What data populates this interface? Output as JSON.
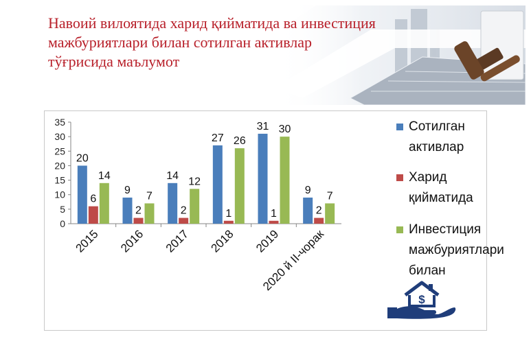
{
  "title": {
    "line1": "Навоий вилоятида харид қийматида ва инвестиция",
    "line2": "мажбуриятлари билан сотилган активлар",
    "line3": "тўғрисида маълумот"
  },
  "chart_data": {
    "type": "bar",
    "categories": [
      "2015",
      "2016",
      "2017",
      "2018",
      "2019",
      "2020 й II-чорак"
    ],
    "series": [
      {
        "name": "Сотилган активлар",
        "color": "#4a7ebb",
        "values": [
          20,
          9,
          14,
          27,
          31,
          9
        ]
      },
      {
        "name": "Харид қийматида",
        "color": "#be4b48",
        "values": [
          6,
          2,
          2,
          1,
          1,
          2
        ]
      },
      {
        "name": "Инвестиция мажбуриятлари билан",
        "color": "#98b954",
        "values": [
          14,
          7,
          12,
          26,
          30,
          7
        ]
      }
    ],
    "yticks": [
      0,
      5,
      10,
      15,
      20,
      25,
      30,
      35
    ],
    "ylim": [
      0,
      35
    ],
    "grid": false,
    "legend_position": "right",
    "legend_lines": [
      [
        "Сотилган",
        "активлар"
      ],
      [
        "Харид",
        "қийматида"
      ],
      [
        "Инвестиция",
        "мажбуриятлари",
        "билан"
      ]
    ]
  },
  "icons": {
    "banner": "gavel-keyboard-icon",
    "decor": "house-dollar-hand-icon"
  }
}
